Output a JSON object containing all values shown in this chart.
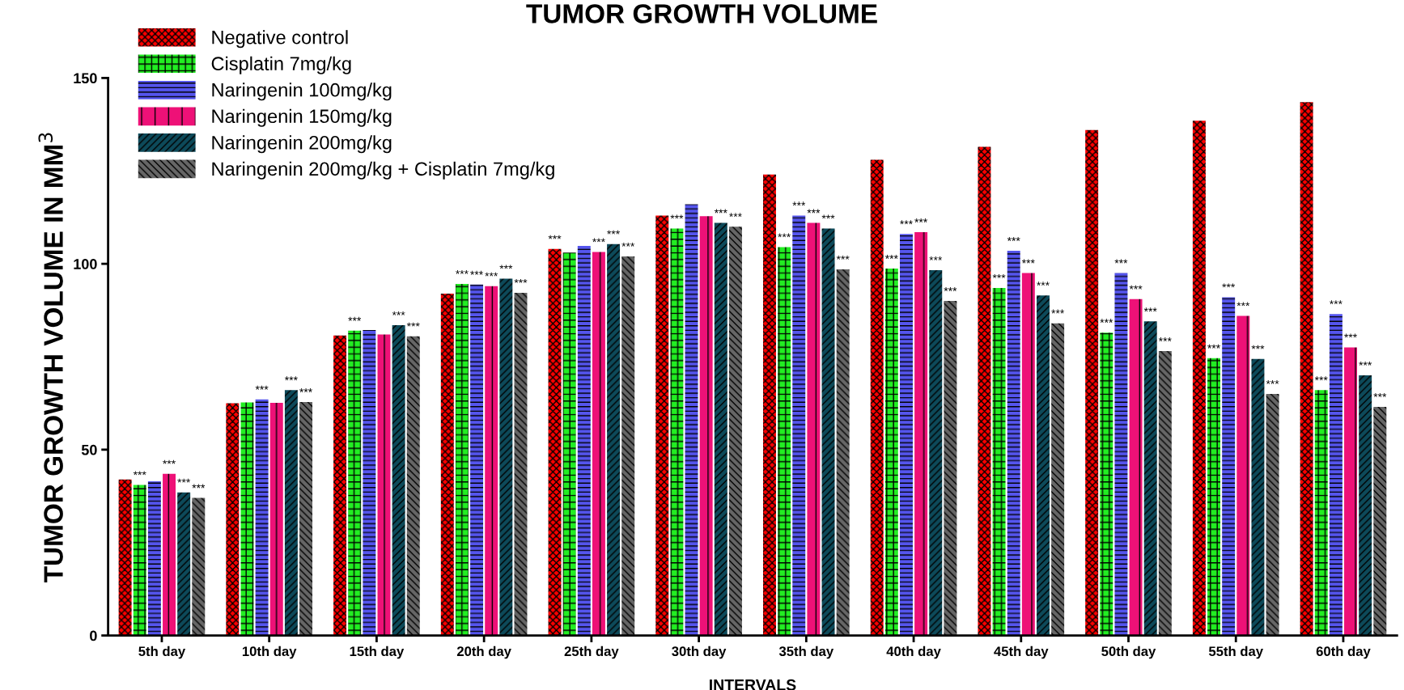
{
  "chart_data": {
    "type": "bar",
    "title": "TUMOR GROWTH VOLUME",
    "xlabel": "INTERVALS",
    "ylabel": "TUMOR GROWTH VOLUME IN MM$^{3}$",
    "categories": [
      "5th day",
      "10th day",
      "15th day",
      "20th day",
      "25th day",
      "30th day",
      "35th day",
      "40th day",
      "45th day",
      "50th day",
      "55th day",
      "60th day"
    ],
    "series": [
      {
        "name": "Negative control",
        "color": "#ff0000",
        "values": [
          42,
          62.5,
          80.7,
          92,
          104,
          113,
          124,
          128,
          131.5,
          136,
          138.5,
          143.5
        ],
        "value_labels": [
          null,
          null,
          null,
          null,
          "***",
          null,
          null,
          null,
          null,
          null,
          null,
          null
        ]
      },
      {
        "name": "Cisplatin 7mg/kg",
        "color": "#22ee22",
        "values": [
          40.5,
          62.7,
          82,
          94.6,
          103,
          109.5,
          104.5,
          98.7,
          93.5,
          81.5,
          74.6,
          66
        ],
        "value_labels": [
          "***",
          null,
          "***",
          "***",
          null,
          "***",
          "***",
          "***",
          "***",
          "***",
          "***",
          "***"
        ]
      },
      {
        "name": "Naringenin 100mg/kg",
        "color": "#5555ee",
        "values": [
          41.5,
          63.5,
          82.2,
          94.4,
          104.8,
          116,
          113,
          108,
          103.5,
          97.5,
          91,
          86.5
        ],
        "value_labels": [
          null,
          "***",
          null,
          "***",
          null,
          null,
          "***",
          "***",
          "***",
          "***",
          "***",
          "***"
        ]
      },
      {
        "name": "Naringenin 150mg/kg",
        "color": "#ee1177",
        "values": [
          43.5,
          62.6,
          81,
          94,
          103.2,
          112.8,
          111,
          108.5,
          97.5,
          90.5,
          86,
          77.5
        ],
        "value_labels": [
          "***",
          null,
          null,
          "***",
          "***",
          null,
          "***",
          "***",
          "***",
          "***",
          "***",
          "***"
        ]
      },
      {
        "name": "Naringenin 200mg/kg",
        "color": "#0d4a5a",
        "values": [
          38.5,
          66,
          83.5,
          96,
          105.3,
          111,
          109.5,
          98.3,
          91.5,
          84.5,
          74.4,
          70
        ],
        "value_labels": [
          "***",
          "***",
          "***",
          "***",
          "***",
          "***",
          "***",
          "***",
          "***",
          "***",
          "***",
          "***"
        ]
      },
      {
        "name": "Naringenin 200mg/kg + Cisplatin 7mg/kg",
        "color": "#666666",
        "values": [
          37,
          62.8,
          80.5,
          92.2,
          102,
          110,
          98.5,
          90,
          84,
          76.5,
          65,
          61.5
        ],
        "value_labels": [
          "***",
          "***",
          "***",
          "***",
          "***",
          "***",
          "***",
          "***",
          "***",
          "***",
          "***",
          "***"
        ]
      }
    ],
    "ylim": [
      0,
      150
    ],
    "yticks": [
      0,
      50,
      100,
      150
    ],
    "grid": false,
    "legend": "top left"
  }
}
